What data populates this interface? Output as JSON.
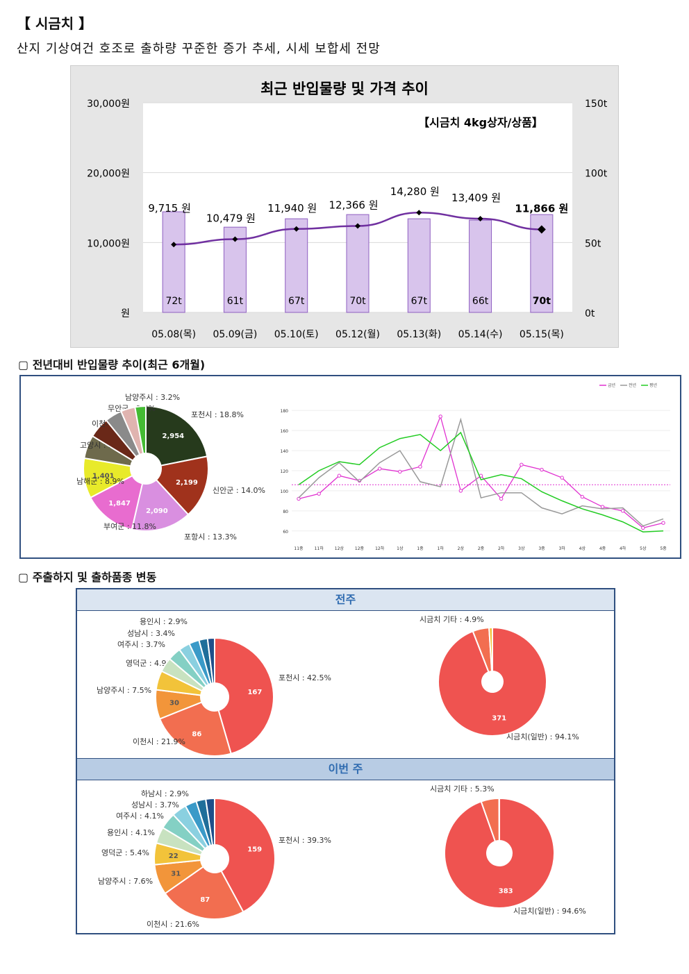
{
  "header": {
    "title": "【 시금치 】",
    "subtitle": "산지 기상여건 호조로 출하량 꾸준한 증가 추세, 시세 보합세 전망"
  },
  "sections": {
    "yoy": "▢ 전년대비 반입물량 추이(최근 6개월)",
    "shipping": "▢ 주출하지 및 출하품종 변동"
  },
  "chart_data": [
    {
      "type": "bar+line",
      "title": "최근 반입물량 및 가격 추이",
      "subtitle": "【시금치 4kg상자/상품】",
      "categories": [
        "05.08(목)",
        "05.09(금)",
        "05.10(토)",
        "05.12(월)",
        "05.13(화)",
        "05.14(수)",
        "05.15(목)"
      ],
      "volume_t": [
        72,
        61,
        67,
        70,
        67,
        66,
        70
      ],
      "volume_labels": [
        "72t",
        "61t",
        "67t",
        "70t",
        "67t",
        "66t",
        "70t"
      ],
      "price_won": [
        9715,
        10479,
        11940,
        12366,
        14280,
        13409,
        11866
      ],
      "price_labels": [
        "9,715 원",
        "10,479 원",
        "11,940 원",
        "12,366 원",
        "14,280 원",
        "13,409 원",
        "11,866 원"
      ],
      "left_ticks": [
        "30,000원",
        "20,000원",
        "10,000원",
        "원"
      ],
      "right_ticks": [
        "150t",
        "100t",
        "50t",
        "0t"
      ],
      "left_ylim": [
        0,
        30000
      ],
      "right_ylim": [
        0,
        150
      ],
      "colors": {
        "bar": "#d8c4ec",
        "bar_border": "#8e5fc0",
        "line": "#7030a0"
      }
    },
    {
      "type": "pie",
      "slices": [
        {
          "label": "포천시 : 18.8%",
          "value": 2954,
          "pct": 18.8,
          "color": "#263a1c",
          "inner": "2,954"
        },
        {
          "label": "신안군 : 14.0%",
          "value": 2199,
          "pct": 14.0,
          "color": "#a0321c",
          "inner": "2,199"
        },
        {
          "label": "포항시 : 13.3%",
          "value": 2090,
          "pct": 13.3,
          "color": "#d98fe0",
          "inner": "2,090"
        },
        {
          "label": "부여군 : 11.8%",
          "value": 1847,
          "pct": 11.8,
          "color": "#e86ccf",
          "inner": "1,847"
        },
        {
          "label": "남해군 : 8.9%",
          "value": 1401,
          "pct": 8.9,
          "color": "#e8ea2a",
          "inner": "1,401"
        },
        {
          "label": "고양시 : 5.2%",
          "value": 0,
          "pct": 5.2,
          "color": "#6e6a4c",
          "inner": ""
        },
        {
          "label": "이천시 : 4.6%",
          "value": 0,
          "pct": 4.6,
          "color": "#6a2818",
          "inner": ""
        },
        {
          "label": "무안군 : 3.8%",
          "value": 0,
          "pct": 3.8,
          "color": "#8a8a8a",
          "inner": ""
        },
        {
          "label": "남양주시 : 3.2%",
          "value": 0,
          "pct": 3.2,
          "color": "#e0b4b0",
          "inner": ""
        },
        {
          "label": "",
          "value": 0,
          "pct": 2.4,
          "color": "#44bb33",
          "inner": ""
        }
      ]
    },
    {
      "type": "line",
      "legend": [
        "금년",
        "전년",
        "평년"
      ],
      "x": [
        "11중",
        "11하",
        "12상",
        "12중",
        "12하",
        "1상",
        "1중",
        "1하",
        "2상",
        "2중",
        "2하",
        "3상",
        "3중",
        "3하",
        "4상",
        "4중",
        "4하",
        "5상",
        "5중"
      ],
      "y_ticks": [
        "180",
        "160",
        "140",
        "120",
        "100",
        "80",
        "60"
      ],
      "ylim": [
        55,
        185
      ],
      "reference": 106,
      "series": [
        {
          "name": "금년",
          "color": "#e030d0",
          "values": [
            92,
            97,
            115,
            110,
            122,
            119,
            124,
            174,
            100,
            115,
            92,
            126,
            121,
            113,
            94,
            84,
            80,
            63,
            68
          ]
        },
        {
          "name": "전년",
          "color": "#999999",
          "values": [
            93,
            113,
            128,
            109,
            128,
            140,
            109,
            104,
            171,
            93,
            98,
            98,
            83,
            77,
            85,
            82,
            83,
            65,
            72
          ]
        },
        {
          "name": "평년",
          "color": "#22cc22",
          "values": [
            106,
            120,
            129,
            126,
            143,
            152,
            156,
            140,
            158,
            111,
            116,
            112,
            99,
            90,
            82,
            76,
            69,
            59,
            60
          ]
        }
      ]
    },
    {
      "type": "pie",
      "panel": "전주",
      "slices": [
        {
          "label": "포천시 : 42.5%",
          "pct": 42.5,
          "color": "#ef5350",
          "inner": "167"
        },
        {
          "label": "이천시 : 21.9%",
          "pct": 21.9,
          "color": "#f26e50",
          "inner": "86"
        },
        {
          "label": "남양주시 : 7.5%",
          "pct": 7.5,
          "color": "#f2953a",
          "inner": "30"
        },
        {
          "label": "영덕군 : 4.9%",
          "pct": 4.9,
          "color": "#f2c33a",
          "inner": ""
        },
        {
          "label": "여주시 : 3.7%",
          "pct": 3.7,
          "color": "#c8e2c0",
          "inner": ""
        },
        {
          "label": "성남시 : 3.4%",
          "pct": 3.4,
          "color": "#84d0c4",
          "inner": ""
        },
        {
          "label": "용인시 : 2.9%",
          "pct": 2.9,
          "color": "#8ad0e0",
          "inner": ""
        },
        {
          "label": "",
          "pct": 2.6,
          "color": "#3a9ac8",
          "inner": ""
        },
        {
          "label": "",
          "pct": 2.2,
          "color": "#1f6e9a",
          "inner": ""
        },
        {
          "label": "",
          "pct": 1.8,
          "color": "#1f4f8a",
          "inner": ""
        }
      ]
    },
    {
      "type": "pie",
      "panel": "전주",
      "slices": [
        {
          "label": "시금치(일반) : 94.1%",
          "pct": 94.1,
          "color": "#ef5350",
          "inner": "371"
        },
        {
          "label": "시금치 기타 : 4.9%",
          "pct": 4.9,
          "color": "#f26e50",
          "inner": ""
        },
        {
          "label": "",
          "pct": 1.0,
          "color": "#f2c33a",
          "inner": ""
        }
      ]
    },
    {
      "type": "pie",
      "panel": "이번 주",
      "slices": [
        {
          "label": "포천시 : 39.3%",
          "pct": 39.3,
          "color": "#ef5350",
          "inner": "159"
        },
        {
          "label": "이천시 : 21.6%",
          "pct": 21.6,
          "color": "#f26e50",
          "inner": "87"
        },
        {
          "label": "남양주시 : 7.6%",
          "pct": 7.6,
          "color": "#f2953a",
          "inner": "31"
        },
        {
          "label": "영덕군 : 5.4%",
          "pct": 5.4,
          "color": "#f2c33a",
          "inner": "22"
        },
        {
          "label": "용인시 : 4.1%",
          "pct": 4.1,
          "color": "#c8e2c0",
          "inner": ""
        },
        {
          "label": "여주시 : 4.1%",
          "pct": 4.1,
          "color": "#84d0c4",
          "inner": ""
        },
        {
          "label": "성남시 : 3.7%",
          "pct": 3.7,
          "color": "#8ad0e0",
          "inner": ""
        },
        {
          "label": "하남시 : 2.9%",
          "pct": 2.9,
          "color": "#3a9ac8",
          "inner": ""
        },
        {
          "label": "",
          "pct": 2.4,
          "color": "#1f6e9a",
          "inner": ""
        },
        {
          "label": "",
          "pct": 2.2,
          "color": "#1f4f8a",
          "inner": ""
        }
      ]
    },
    {
      "type": "pie",
      "panel": "이번 주",
      "slices": [
        {
          "label": "시금치(일반) : 94.6%",
          "pct": 94.6,
          "color": "#ef5350",
          "inner": "383"
        },
        {
          "label": "시금치 기타 : 5.3%",
          "pct": 5.3,
          "color": "#f26e50",
          "inner": ""
        },
        {
          "label": "",
          "pct": 0.1,
          "color": "#f2c33a",
          "inner": ""
        }
      ]
    }
  ],
  "panels": {
    "prev_week": "전주",
    "this_week": "이번 주"
  }
}
